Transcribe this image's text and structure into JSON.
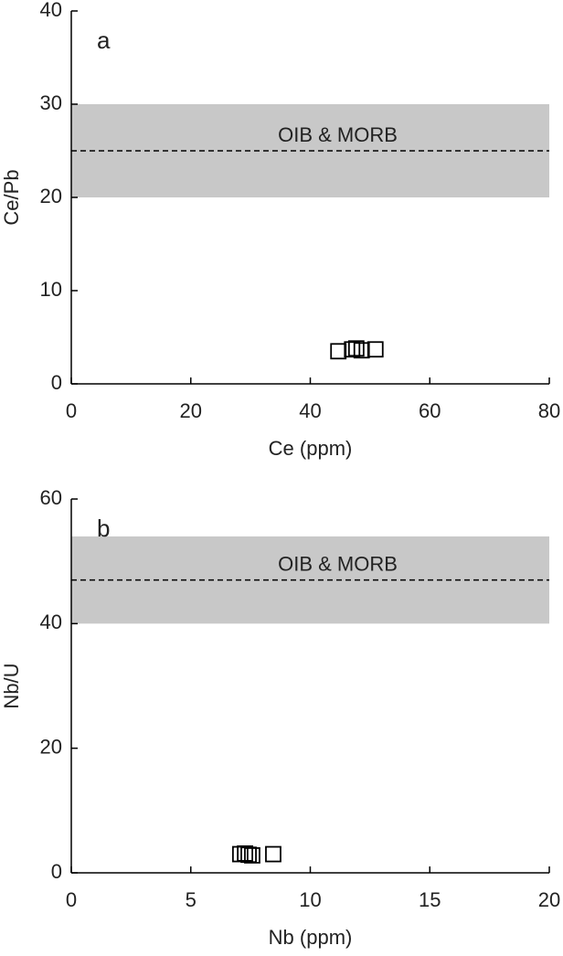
{
  "chart_data": [
    {
      "type": "scatter",
      "panel_label": "a",
      "xlabel": "Ce (ppm)",
      "ylabel": "Ce/Pb",
      "xlim": [
        0,
        80
      ],
      "ylim": [
        0,
        40
      ],
      "xticks": [
        0,
        20,
        40,
        60,
        80
      ],
      "yticks": [
        0,
        10,
        20,
        30,
        40
      ],
      "x": [
        44.7,
        47,
        47.7,
        48.6,
        50.9
      ],
      "y": [
        3.5,
        3.7,
        3.8,
        3.6,
        3.7
      ],
      "band": [
        20,
        30
      ],
      "band_line": 25,
      "band_label": "OIB & MORB",
      "band_color": "#c8c8c8",
      "color": "#000000"
    },
    {
      "type": "scatter",
      "panel_label": "b",
      "xlabel": "Nb (ppm)",
      "ylabel": "Nb/U",
      "xlim": [
        0,
        20
      ],
      "ylim": [
        0,
        60
      ],
      "xticks": [
        0,
        5,
        10,
        15,
        20
      ],
      "yticks": [
        0,
        20,
        40,
        60
      ],
      "x": [
        7.07,
        7.27,
        7.42,
        7.57,
        8.45
      ],
      "y": [
        3.0,
        3.1,
        2.9,
        2.8,
        3.0
      ],
      "band": [
        40,
        54
      ],
      "band_line": 47,
      "band_label": "OIB & MORB",
      "band_color": "#c8c8c8",
      "color": "#000000"
    }
  ]
}
